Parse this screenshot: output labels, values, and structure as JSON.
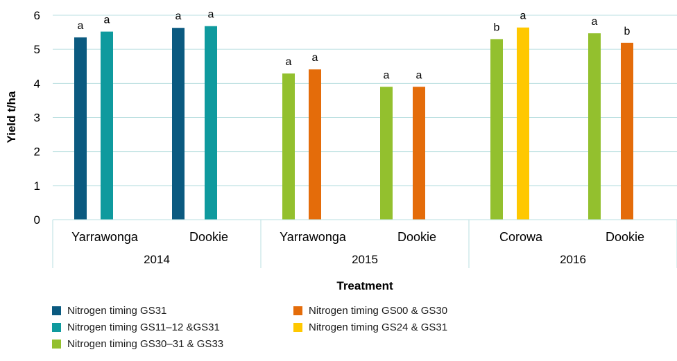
{
  "chart_data": {
    "type": "bar",
    "ylabel": "Yield t/ha",
    "xlabel": "Treatment",
    "ylim": [
      0,
      6
    ],
    "yticks": [
      "0",
      "1",
      "2",
      "3",
      "4",
      "5",
      "6"
    ],
    "grid": true,
    "legend_position": "bottom",
    "years": [
      "2014",
      "2015",
      "2016"
    ],
    "sites": [
      "Yarrawonga",
      "Dookie",
      "Yarrawonga",
      "Dookie",
      "Corowa",
      "Dookie"
    ],
    "series": [
      {
        "name": "Nitrogen timing  GS31",
        "color": "#0b5a80",
        "points": [
          {
            "site": 0,
            "value": 5.35,
            "label": "a"
          },
          {
            "site": 1,
            "value": 5.63,
            "label": "a"
          }
        ]
      },
      {
        "name": "Nitrogen timing  GS11–12 &GS31",
        "color": "#0f9a9e",
        "points": [
          {
            "site": 0,
            "value": 5.52,
            "label": "a"
          },
          {
            "site": 1,
            "value": 5.68,
            "label": "a"
          }
        ]
      },
      {
        "name": "Nitrogen timing  GS30–31 & GS33",
        "color": "#93c02e",
        "points": [
          {
            "site": 2,
            "value": 4.29,
            "label": "a"
          },
          {
            "site": 3,
            "value": 3.9,
            "label": "a"
          },
          {
            "site": 4,
            "value": 5.3,
            "label": "b"
          },
          {
            "site": 5,
            "value": 5.47,
            "label": "a"
          }
        ]
      },
      {
        "name": "Nitrogen timing  GS00 & GS30",
        "color": "#e46c0a",
        "points": [
          {
            "site": 2,
            "value": 4.41,
            "label": "a"
          },
          {
            "site": 3,
            "value": 3.9,
            "label": "a"
          },
          {
            "site": 5,
            "value": 5.19,
            "label": "b"
          }
        ]
      },
      {
        "name": "Nitrogen timing  GS24 & GS31",
        "color": "#ffc800",
        "points": [
          {
            "site": 4,
            "value": 5.64,
            "label": "a"
          }
        ]
      }
    ]
  }
}
